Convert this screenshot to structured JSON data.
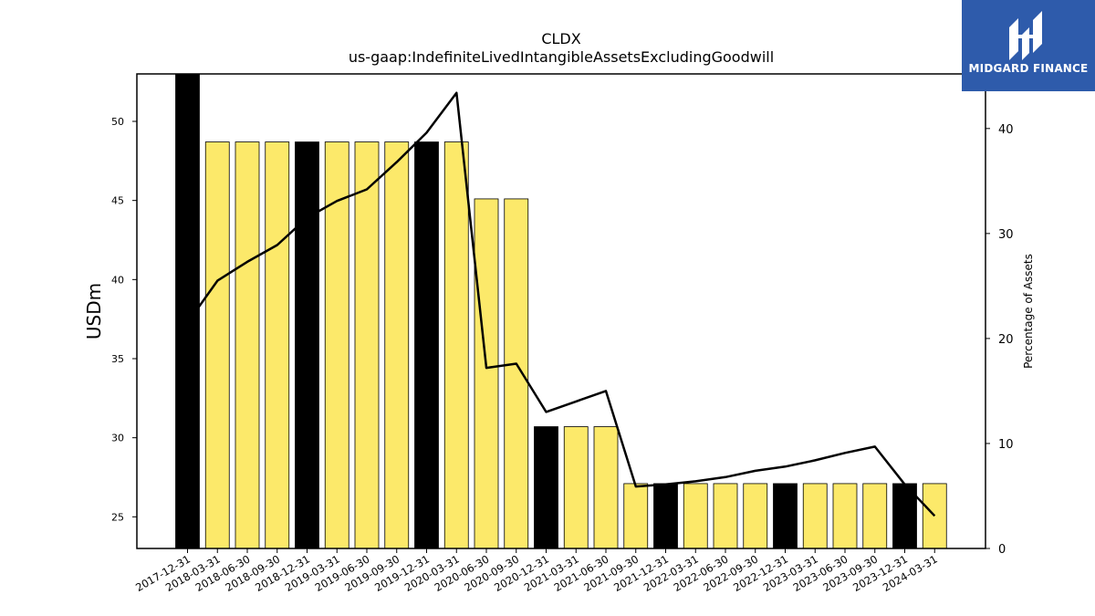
{
  "header": {
    "title": "CLDX",
    "subtitle": "us-gaap:IndefiniteLivedIntangibleAssetsExcludingGoodwill"
  },
  "logo": {
    "text": "MIDGARD FINANCE",
    "icon": "midgard-logo-icon",
    "color": "#2e5bab"
  },
  "chart_data": {
    "type": "bar",
    "title": "CLDX",
    "subtitle": "us-gaap:IndefiniteLivedIntangibleAssetsExcludingGoodwill",
    "ylabel": "USDm",
    "y2label": "Percentage of Assets",
    "ylim": [
      23.0,
      53.0
    ],
    "y2lim": [
      0,
      45.2
    ],
    "yticks": [
      25,
      30,
      35,
      40,
      45,
      50
    ],
    "y2ticks": [
      0,
      10,
      20,
      30,
      40
    ],
    "colors": {
      "year_end": "#000000",
      "quarter": "#fce96a",
      "line": "#000000"
    },
    "categories": [
      "2017-12-31",
      "2018-03-31",
      "2018-06-30",
      "2018-09-30",
      "2018-12-31",
      "2019-03-31",
      "2019-06-30",
      "2019-09-30",
      "2019-12-31",
      "2020-03-31",
      "2020-06-30",
      "2020-09-30",
      "2020-12-31",
      "2021-03-31",
      "2021-06-30",
      "2021-09-30",
      "2021-12-31",
      "2022-03-31",
      "2022-06-30",
      "2022-09-30",
      "2022-12-31",
      "2023-03-31",
      "2023-06-30",
      "2023-09-30",
      "2023-12-31",
      "2024-03-31"
    ],
    "series": [
      {
        "type": "bar",
        "values": [
          53.0,
          48.7,
          48.7,
          48.7,
          48.7,
          48.7,
          48.7,
          48.7,
          48.7,
          48.7,
          45.1,
          45.1,
          30.7,
          30.7,
          30.7,
          27.1,
          27.1,
          27.1,
          27.1,
          27.1,
          27.1,
          27.1,
          27.1,
          27.1,
          27.1,
          27.1
        ],
        "year_end": [
          true,
          false,
          false,
          false,
          true,
          false,
          false,
          false,
          true,
          false,
          false,
          false,
          true,
          false,
          false,
          false,
          true,
          false,
          false,
          false,
          true,
          false,
          false,
          false,
          true,
          false
        ]
      },
      {
        "type": "line",
        "axis": "right",
        "values": [
          21.5,
          25.5,
          27.3,
          28.9,
          31.5,
          33.1,
          34.2,
          36.8,
          39.6,
          43.4,
          17.2,
          17.6,
          13.0,
          14.0,
          15.0,
          5.9,
          6.1,
          6.4,
          6.8,
          7.4,
          7.8,
          8.4,
          9.1,
          9.7,
          6.1,
          3.1
        ]
      }
    ]
  }
}
